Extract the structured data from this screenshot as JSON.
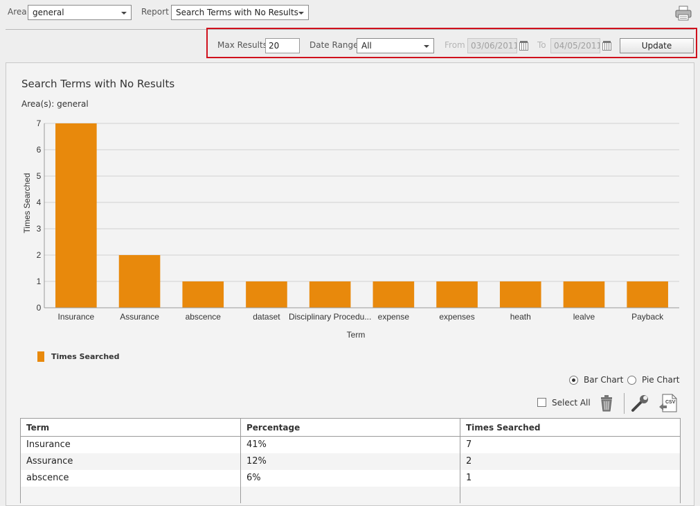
{
  "toolbar": {
    "area_label": "Area",
    "area_value": "general",
    "report_label": "Report",
    "report_value": "Search Terms with No Results"
  },
  "filters": {
    "max_results_label": "Max Results",
    "max_results_value": "20",
    "date_range_label": "Date Range",
    "date_range_value": "All",
    "from_label": "From",
    "from_value": "03/06/2011",
    "to_label": "To",
    "to_value": "04/05/2011",
    "update_label": "Update"
  },
  "report": {
    "title": "Search Terms with No Results",
    "areas": "Area(s): general"
  },
  "chart_data": {
    "type": "bar",
    "categories": [
      "Insurance",
      "Assurance",
      "abscence",
      "dataset",
      "Disciplinary Procedu...",
      "expense",
      "expenses",
      "heath",
      "lealve",
      "Payback"
    ],
    "series": [
      {
        "name": "Times Searched",
        "values": [
          7,
          2,
          1,
          1,
          1,
          1,
          1,
          1,
          1,
          1
        ]
      }
    ],
    "xlabel": "Term",
    "ylabel": "Times Searched",
    "ylim": [
      0,
      7
    ],
    "yticks": [
      0,
      1,
      2,
      3,
      4,
      5,
      6,
      7
    ],
    "grid": true,
    "legend": "bottom-left",
    "color": "#e8890c"
  },
  "chart_options": {
    "bar_chart_label": "Bar Chart",
    "pie_chart_label": "Pie Chart",
    "selected": "bar"
  },
  "actions": {
    "select_all_label": "Select All",
    "delete_icon": "trash-icon",
    "settings_icon": "wrench-icon",
    "csv_icon": "csv-export-icon",
    "csv_text": "CSV"
  },
  "table": {
    "headers": [
      "Term",
      "Percentage",
      "Times Searched"
    ],
    "rows": [
      [
        "Insurance",
        "41%",
        "7"
      ],
      [
        "Assurance",
        "12%",
        "2"
      ],
      [
        "abscence",
        "6%",
        "1"
      ]
    ]
  }
}
